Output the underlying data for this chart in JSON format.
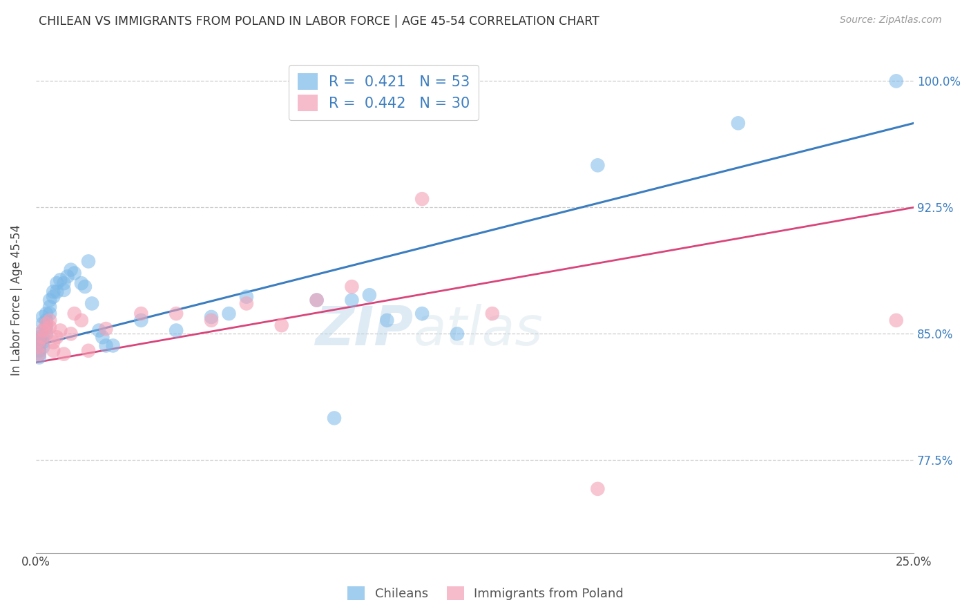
{
  "title": "CHILEAN VS IMMIGRANTS FROM POLAND IN LABOR FORCE | AGE 45-54 CORRELATION CHART",
  "source": "Source: ZipAtlas.com",
  "ylabel": "In Labor Force | Age 45-54",
  "x_min": 0.0,
  "x_max": 0.25,
  "y_min": 0.72,
  "y_max": 1.02,
  "y_ticks": [
    0.775,
    0.85,
    0.925,
    1.0
  ],
  "y_tick_labels": [
    "77.5%",
    "85.0%",
    "92.5%",
    "100.0%"
  ],
  "x_tick_positions": [
    0.0,
    0.05,
    0.1,
    0.15,
    0.2,
    0.25
  ],
  "x_tick_labels": [
    "0.0%",
    "",
    "",
    "",
    "",
    "25.0%"
  ],
  "blue_color": "#7ab8e8",
  "pink_color": "#f4a0b5",
  "blue_line_color": "#3b7dbf",
  "pink_line_color": "#d9457a",
  "blue_line_y0": 0.843,
  "blue_line_y1": 0.975,
  "pink_line_y0": 0.833,
  "pink_line_y1": 0.925,
  "watermark": "ZIPatlas",
  "background_color": "#ffffff",
  "grid_color": "#cccccc",
  "legend_blue_label": "R =  0.421   N = 53",
  "legend_pink_label": "R =  0.442   N = 30",
  "chilean_x": [
    0.001,
    0.001,
    0.001,
    0.001,
    0.001,
    0.001,
    0.001,
    0.001,
    0.002,
    0.002,
    0.002,
    0.002,
    0.002,
    0.003,
    0.003,
    0.003,
    0.003,
    0.004,
    0.004,
    0.004,
    0.005,
    0.005,
    0.006,
    0.006,
    0.007,
    0.008,
    0.008,
    0.009,
    0.01,
    0.011,
    0.013,
    0.014,
    0.015,
    0.016,
    0.018,
    0.019,
    0.02,
    0.022,
    0.03,
    0.04,
    0.05,
    0.055,
    0.06,
    0.08,
    0.085,
    0.09,
    0.095,
    0.1,
    0.11,
    0.12,
    0.16,
    0.2,
    0.245
  ],
  "chilean_y": [
    0.85,
    0.848,
    0.846,
    0.844,
    0.842,
    0.84,
    0.838,
    0.836,
    0.848,
    0.845,
    0.842,
    0.86,
    0.856,
    0.862,
    0.858,
    0.854,
    0.85,
    0.87,
    0.866,
    0.862,
    0.875,
    0.872,
    0.88,
    0.875,
    0.882,
    0.88,
    0.876,
    0.884,
    0.888,
    0.886,
    0.88,
    0.878,
    0.893,
    0.868,
    0.852,
    0.848,
    0.843,
    0.843,
    0.858,
    0.852,
    0.86,
    0.862,
    0.872,
    0.87,
    0.8,
    0.87,
    0.873,
    0.858,
    0.862,
    0.85,
    0.95,
    0.975,
    1.0
  ],
  "poland_x": [
    0.001,
    0.001,
    0.001,
    0.002,
    0.002,
    0.003,
    0.003,
    0.004,
    0.004,
    0.005,
    0.005,
    0.006,
    0.007,
    0.008,
    0.01,
    0.011,
    0.013,
    0.015,
    0.02,
    0.03,
    0.04,
    0.05,
    0.06,
    0.07,
    0.08,
    0.09,
    0.11,
    0.13,
    0.16,
    0.245
  ],
  "poland_y": [
    0.846,
    0.842,
    0.838,
    0.852,
    0.848,
    0.856,
    0.852,
    0.858,
    0.854,
    0.845,
    0.84,
    0.848,
    0.852,
    0.838,
    0.85,
    0.862,
    0.858,
    0.84,
    0.853,
    0.862,
    0.862,
    0.858,
    0.868,
    0.855,
    0.87,
    0.878,
    0.93,
    0.862,
    0.758,
    0.858
  ]
}
